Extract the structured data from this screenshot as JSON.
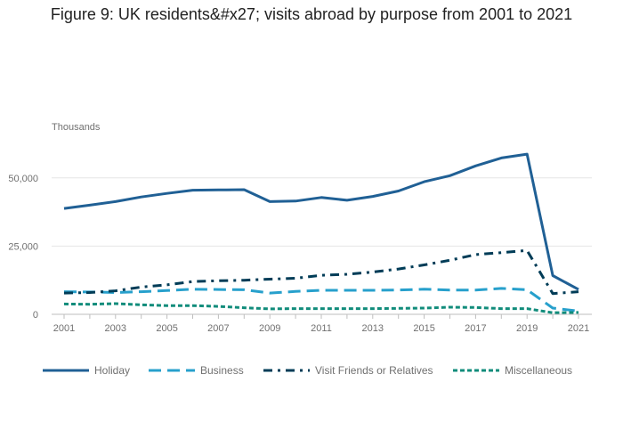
{
  "chart_data": {
    "type": "line",
    "title": "Figure 9: UK residents&#x27; visits abroad by purpose from 2001 to 2021",
    "ylabel": "Thousands",
    "xlabel": "",
    "x": [
      2001,
      2002,
      2003,
      2004,
      2005,
      2006,
      2007,
      2008,
      2009,
      2010,
      2011,
      2012,
      2013,
      2014,
      2015,
      2016,
      2017,
      2018,
      2019,
      2020,
      2021
    ],
    "xticks": [
      "2001",
      "2003",
      "2005",
      "2007",
      "2009",
      "2011",
      "2013",
      "2015",
      "2017",
      "2019",
      "2021"
    ],
    "ylim": [
      0,
      62000
    ],
    "yticks": [
      {
        "value": 0,
        "label": "0"
      },
      {
        "value": 25000,
        "label": "25,000"
      },
      {
        "value": 50000,
        "label": "50,000"
      }
    ],
    "legend_position": "bottom",
    "series": [
      {
        "name": "Holiday",
        "color": "#206095",
        "dash": "solid",
        "values": [
          38800,
          40000,
          41300,
          43000,
          44300,
          45500,
          45600,
          45700,
          41300,
          41500,
          42800,
          41800,
          43200,
          45200,
          48600,
          50800,
          54400,
          57300,
          58700,
          14200,
          9100
        ]
      },
      {
        "name": "Business",
        "color": "#27a0cc",
        "dash": "dash",
        "values": [
          8300,
          8200,
          8000,
          8300,
          8700,
          9200,
          9100,
          9000,
          7800,
          8400,
          8800,
          8800,
          8800,
          8900,
          9200,
          8900,
          8900,
          9500,
          9000,
          2300,
          1200
        ]
      },
      {
        "name": "Visit Friends or Relatives",
        "color": "#003c57",
        "dash": "dashdot",
        "values": [
          7800,
          8000,
          8600,
          10000,
          10800,
          12000,
          12300,
          12500,
          12900,
          13200,
          14300,
          14700,
          15500,
          16600,
          18100,
          19800,
          21900,
          22600,
          23400,
          7600,
          8300
        ]
      },
      {
        "name": "Miscellaneous",
        "color": "#118c7b",
        "dash": "dot",
        "values": [
          3800,
          3700,
          3900,
          3500,
          3200,
          3200,
          2900,
          2400,
          2000,
          2100,
          2100,
          2100,
          2100,
          2200,
          2300,
          2600,
          2500,
          2100,
          2100,
          600,
          700
        ]
      }
    ]
  }
}
